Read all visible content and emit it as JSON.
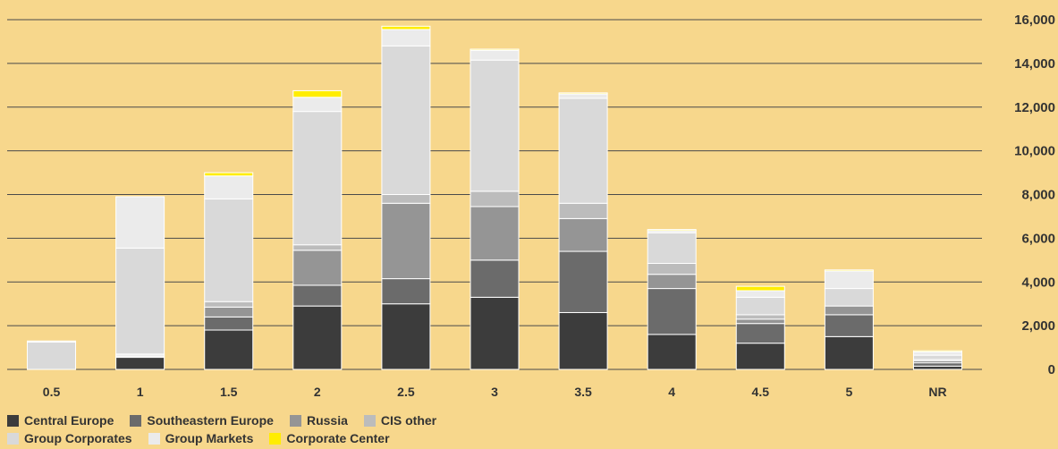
{
  "chart_data": {
    "type": "bar",
    "stacked": true,
    "categories": [
      "0.5",
      "1",
      "1.5",
      "2",
      "2.5",
      "3",
      "3.5",
      "4",
      "4.5",
      "5",
      "NR"
    ],
    "ylim": [
      0,
      16000
    ],
    "yticks": [
      "0",
      "2,000",
      "4,000",
      "6,000",
      "8,000",
      "10,000",
      "12,000",
      "14,000",
      "16,000"
    ],
    "grid": true,
    "legend_position": "bottom-left",
    "series": [
      {
        "name": "Central Europe",
        "color": "#3c3c3c",
        "values": [
          0,
          550,
          1800,
          2900,
          3000,
          3300,
          2600,
          1600,
          1200,
          1500,
          150
        ]
      },
      {
        "name": "Southeastern Europe",
        "color": "#6b6b6b",
        "values": [
          0,
          50,
          600,
          950,
          1150,
          1700,
          2800,
          2100,
          900,
          1000,
          150
        ]
      },
      {
        "name": "Russia",
        "color": "#959595",
        "values": [
          0,
          50,
          450,
          1600,
          3450,
          2450,
          1500,
          650,
          200,
          400,
          100
        ]
      },
      {
        "name": "CIS other",
        "color": "#bcbcbc",
        "values": [
          0,
          50,
          250,
          250,
          400,
          700,
          700,
          500,
          200,
          0,
          50
        ]
      },
      {
        "name": "Group Corporates",
        "color": "#d9d9d9",
        "values": [
          1250,
          4850,
          4700,
          6100,
          6800,
          6000,
          4800,
          1400,
          800,
          800,
          200
        ]
      },
      {
        "name": "Group Markets",
        "color": "#ebebeb",
        "values": [
          50,
          2350,
          1050,
          650,
          750,
          450,
          200,
          100,
          300,
          800,
          150
        ]
      },
      {
        "name": "Corporate Center",
        "color": "#ffed00",
        "values": [
          0,
          0,
          150,
          300,
          150,
          50,
          50,
          50,
          200,
          50,
          50
        ]
      }
    ]
  }
}
